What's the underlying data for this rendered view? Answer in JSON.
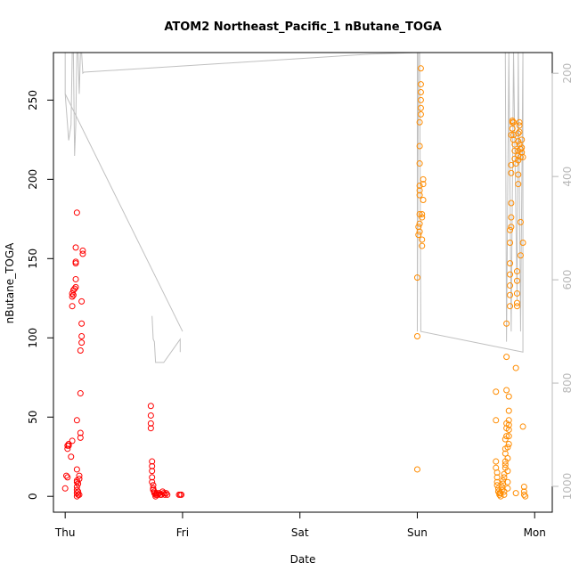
{
  "chart_data": {
    "type": "scatter",
    "title": "ATOM2 Northeast_Pacific_1 nButane_TOGA",
    "xlabel": "Date",
    "ylabel": "nButane_TOGA",
    "x_ticks": [
      "Thu",
      "Fri",
      "Sat",
      "Sun",
      "Mon"
    ],
    "xlim": [
      -0.1,
      4.15
    ],
    "ylim": [
      -10,
      280
    ],
    "y_ticks": [
      0,
      50,
      100,
      150,
      200,
      250
    ],
    "y2_ticks": [
      200,
      400,
      600,
      800,
      1000
    ],
    "y2lim": [
      160,
      1050
    ],
    "y2_reversed": true,
    "colors": {
      "series_a": "#ff0000",
      "series_b": "#ff8c00",
      "pressure_line": "#c0c0c0"
    },
    "series": [
      {
        "color": "#ff0000",
        "points": [
          [
            0.0,
            5
          ],
          [
            0.01,
            13
          ],
          [
            0.02,
            12
          ],
          [
            0.02,
            30
          ],
          [
            0.02,
            32
          ],
          [
            0.03,
            33
          ],
          [
            0.03,
            32
          ],
          [
            0.05,
            25
          ],
          [
            0.06,
            35
          ],
          [
            0.06,
            120
          ],
          [
            0.06,
            126
          ],
          [
            0.06,
            128
          ],
          [
            0.07,
            130
          ],
          [
            0.07,
            127
          ],
          [
            0.08,
            131
          ],
          [
            0.09,
            148
          ],
          [
            0.09,
            147
          ],
          [
            0.09,
            157
          ],
          [
            0.09,
            137
          ],
          [
            0.09,
            132
          ],
          [
            0.1,
            0
          ],
          [
            0.1,
            2
          ],
          [
            0.1,
            4
          ],
          [
            0.1,
            6
          ],
          [
            0.1,
            9
          ],
          [
            0.1,
            10
          ],
          [
            0.1,
            17
          ],
          [
            0.1,
            48
          ],
          [
            0.1,
            179
          ],
          [
            0.11,
            1
          ],
          [
            0.11,
            3
          ],
          [
            0.11,
            8
          ],
          [
            0.12,
            1
          ],
          [
            0.12,
            11
          ],
          [
            0.12,
            13
          ],
          [
            0.13,
            37
          ],
          [
            0.13,
            40
          ],
          [
            0.13,
            65
          ],
          [
            0.13,
            92
          ],
          [
            0.14,
            97
          ],
          [
            0.14,
            101
          ],
          [
            0.14,
            109
          ],
          [
            0.14,
            123
          ],
          [
            0.15,
            153
          ],
          [
            0.15,
            155
          ],
          [
            0.73,
            57
          ],
          [
            0.73,
            51
          ],
          [
            0.73,
            46
          ],
          [
            0.73,
            43
          ],
          [
            0.74,
            22
          ],
          [
            0.74,
            19
          ],
          [
            0.74,
            16
          ],
          [
            0.74,
            12
          ],
          [
            0.74,
            9
          ],
          [
            0.75,
            7
          ],
          [
            0.75,
            5
          ],
          [
            0.75,
            4
          ],
          [
            0.76,
            3
          ],
          [
            0.76,
            2
          ],
          [
            0.77,
            1
          ],
          [
            0.77,
            0
          ],
          [
            0.78,
            2
          ],
          [
            0.78,
            1
          ],
          [
            0.79,
            1
          ],
          [
            0.8,
            2
          ],
          [
            0.81,
            1
          ],
          [
            0.82,
            1
          ],
          [
            0.83,
            3
          ],
          [
            0.84,
            2
          ],
          [
            0.85,
            1
          ],
          [
            0.86,
            2
          ],
          [
            0.87,
            1
          ],
          [
            0.97,
            1
          ],
          [
            0.98,
            1
          ],
          [
            0.99,
            1
          ]
        ]
      },
      {
        "color": "#ff8c00",
        "points": [
          [
            3.0,
            17
          ],
          [
            3.0,
            101
          ],
          [
            3.0,
            138
          ],
          [
            3.01,
            165
          ],
          [
            3.01,
            170
          ],
          [
            3.02,
            167
          ],
          [
            3.02,
            172
          ],
          [
            3.02,
            178
          ],
          [
            3.02,
            190
          ],
          [
            3.02,
            193
          ],
          [
            3.02,
            196
          ],
          [
            3.02,
            210
          ],
          [
            3.02,
            221
          ],
          [
            3.02,
            236
          ],
          [
            3.03,
            241
          ],
          [
            3.03,
            245
          ],
          [
            3.03,
            250
          ],
          [
            3.03,
            255
          ],
          [
            3.03,
            260
          ],
          [
            3.03,
            270
          ],
          [
            3.04,
            158
          ],
          [
            3.04,
            162
          ],
          [
            3.04,
            176
          ],
          [
            3.04,
            178
          ],
          [
            3.05,
            187
          ],
          [
            3.05,
            197
          ],
          [
            3.05,
            200
          ],
          [
            3.67,
            66
          ],
          [
            3.67,
            48
          ],
          [
            3.67,
            22
          ],
          [
            3.67,
            18
          ],
          [
            3.68,
            15
          ],
          [
            3.68,
            12
          ],
          [
            3.68,
            9
          ],
          [
            3.68,
            7
          ],
          [
            3.69,
            5
          ],
          [
            3.69,
            3
          ],
          [
            3.7,
            2
          ],
          [
            3.7,
            1
          ],
          [
            3.71,
            0
          ],
          [
            3.71,
            2
          ],
          [
            3.72,
            4
          ],
          [
            3.72,
            6
          ],
          [
            3.73,
            8
          ],
          [
            3.73,
            10
          ],
          [
            3.74,
            1
          ],
          [
            3.74,
            3
          ],
          [
            3.74,
            12
          ],
          [
            3.74,
            14
          ],
          [
            3.75,
            18
          ],
          [
            3.75,
            20
          ],
          [
            3.75,
            22
          ],
          [
            3.75,
            27
          ],
          [
            3.75,
            30
          ],
          [
            3.75,
            36
          ],
          [
            3.76,
            38
          ],
          [
            3.76,
            43
          ],
          [
            3.76,
            46
          ],
          [
            3.76,
            67
          ],
          [
            3.76,
            88
          ],
          [
            3.76,
            109
          ],
          [
            3.77,
            5
          ],
          [
            3.77,
            9
          ],
          [
            3.77,
            16
          ],
          [
            3.77,
            24
          ],
          [
            3.77,
            31
          ],
          [
            3.78,
            33
          ],
          [
            3.78,
            38
          ],
          [
            3.78,
            42
          ],
          [
            3.78,
            45
          ],
          [
            3.78,
            48
          ],
          [
            3.78,
            54
          ],
          [
            3.78,
            63
          ],
          [
            3.79,
            120
          ],
          [
            3.79,
            127
          ],
          [
            3.79,
            133
          ],
          [
            3.79,
            140
          ],
          [
            3.79,
            147
          ],
          [
            3.79,
            160
          ],
          [
            3.79,
            168
          ],
          [
            3.8,
            170
          ],
          [
            3.8,
            176
          ],
          [
            3.8,
            185
          ],
          [
            3.8,
            204
          ],
          [
            3.8,
            209
          ],
          [
            3.8,
            228
          ],
          [
            3.81,
            232
          ],
          [
            3.81,
            237
          ],
          [
            3.81,
            236
          ],
          [
            3.81,
            232
          ],
          [
            3.82,
            228
          ],
          [
            3.82,
            225
          ],
          [
            3.82,
            236
          ],
          [
            3.83,
            218
          ],
          [
            3.83,
            222
          ],
          [
            3.83,
            213
          ],
          [
            3.84,
            210
          ],
          [
            3.84,
            81
          ],
          [
            3.84,
            2
          ],
          [
            3.85,
            142
          ],
          [
            3.85,
            136
          ],
          [
            3.85,
            128
          ],
          [
            3.85,
            122
          ],
          [
            3.85,
            120
          ],
          [
            3.86,
            197
          ],
          [
            3.86,
            203
          ],
          [
            3.86,
            212
          ],
          [
            3.86,
            215
          ],
          [
            3.86,
            218
          ],
          [
            3.86,
            224
          ],
          [
            3.86,
            229
          ],
          [
            3.87,
            234
          ],
          [
            3.87,
            236
          ],
          [
            3.87,
            230
          ],
          [
            3.87,
            222
          ],
          [
            3.88,
            219
          ],
          [
            3.88,
            214
          ],
          [
            3.88,
            173
          ],
          [
            3.88,
            152
          ],
          [
            3.89,
            225
          ],
          [
            3.89,
            220
          ],
          [
            3.89,
            217
          ],
          [
            3.9,
            214
          ],
          [
            3.9,
            160
          ],
          [
            3.9,
            44
          ],
          [
            3.91,
            6
          ],
          [
            3.91,
            3
          ],
          [
            3.91,
            1
          ],
          [
            3.92,
            0
          ]
        ]
      }
    ]
  }
}
